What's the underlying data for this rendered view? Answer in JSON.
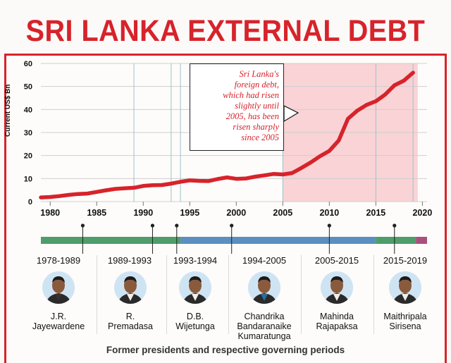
{
  "title": "SRI LANKA EXTERNAL DEBT",
  "annotation": {
    "lines": [
      "Sri Lanka's",
      "foreign debt,",
      "which had risen",
      "slightly until",
      "2005, has been",
      "risen sharply",
      "since 2005"
    ]
  },
  "colors": {
    "accent": "#d7232b",
    "highlight_band": "#f9d3d6",
    "timeline_green": "#4f9d6a",
    "timeline_blue": "#5a8fc0",
    "timeline_purple": "#a9507d",
    "portrait_bg": "#cfe4f3"
  },
  "chart_data": {
    "type": "line",
    "title": "SRI LANKA EXTERNAL DEBT",
    "xlabel": "",
    "ylabel": "Current US$ Bn",
    "xlim": [
      1979,
      2020.5
    ],
    "ylim": [
      0,
      60
    ],
    "x_ticks": [
      1980,
      1985,
      1990,
      1995,
      2000,
      2005,
      2010,
      2015,
      2020
    ],
    "y_ticks": [
      0,
      10,
      20,
      30,
      40,
      50,
      60
    ],
    "grid": "horizontal",
    "highlight_range": [
      2005,
      2019.5
    ],
    "period_dividers": [
      1978,
      1989,
      1993,
      1994,
      2005,
      2015,
      2019
    ],
    "series": [
      {
        "name": "External debt",
        "x": [
          1979,
          1980,
          1981,
          1982,
          1983,
          1984,
          1985,
          1986,
          1987,
          1988,
          1989,
          1990,
          1991,
          1992,
          1993,
          1994,
          1995,
          1996,
          1997,
          1998,
          1999,
          2000,
          2001,
          2002,
          2003,
          2004,
          2005,
          2006,
          2007,
          2008,
          2009,
          2010,
          2011,
          2012,
          2013,
          2014,
          2015,
          2016,
          2017,
          2018,
          2019
        ],
        "values": [
          1.8,
          2.0,
          2.4,
          2.9,
          3.3,
          3.5,
          4.2,
          4.9,
          5.5,
          5.8,
          6.0,
          6.8,
          7.1,
          7.2,
          7.8,
          8.6,
          9.2,
          9.0,
          8.9,
          9.8,
          10.5,
          9.9,
          10.0,
          10.8,
          11.4,
          12.0,
          11.8,
          12.4,
          14.6,
          17.0,
          19.7,
          22.0,
          26.5,
          36.0,
          39.5,
          42.0,
          43.6,
          46.5,
          50.5,
          52.5,
          56.0
        ]
      }
    ],
    "timeline": {
      "year_range": [
        1978,
        2020
      ],
      "segments": [
        {
          "from": 1978,
          "to": 1994,
          "color": "green"
        },
        {
          "from": 1994,
          "to": 2015,
          "color": "blue"
        },
        {
          "from": 2015,
          "to": 2019.3,
          "color": "green"
        },
        {
          "from": 2019.3,
          "to": 2020.8,
          "color": "purple"
        }
      ],
      "markers": [
        1983.5,
        1991,
        1993.6,
        1999.5,
        2010,
        2017
      ]
    }
  },
  "presidents": [
    {
      "period": "1978-1989",
      "name_lines": [
        "J.R.",
        "Jayewardene"
      ],
      "tie": "#3c2e2a"
    },
    {
      "period": "1989-1993",
      "name_lines": [
        "R.",
        "Premadasa"
      ],
      "tie": "#f0efe8"
    },
    {
      "period": "1993-1994",
      "name_lines": [
        "D.B.",
        "Wijetunga"
      ],
      "tie": "#f0efe8"
    },
    {
      "period": "1994-2005",
      "name_lines": [
        "Chandrika",
        "Bandaranaike",
        "Kumaratunga"
      ],
      "tie": "#2b6e9a"
    },
    {
      "period": "2005-2015",
      "name_lines": [
        "Mahinda",
        "Rajapaksa"
      ],
      "tie": "#f0efe8"
    },
    {
      "period": "2015-2019",
      "name_lines": [
        "Maithripala",
        "Sirisena"
      ],
      "tie": "#f0efe8"
    }
  ],
  "caption": "Former presidents and respective governing periods"
}
